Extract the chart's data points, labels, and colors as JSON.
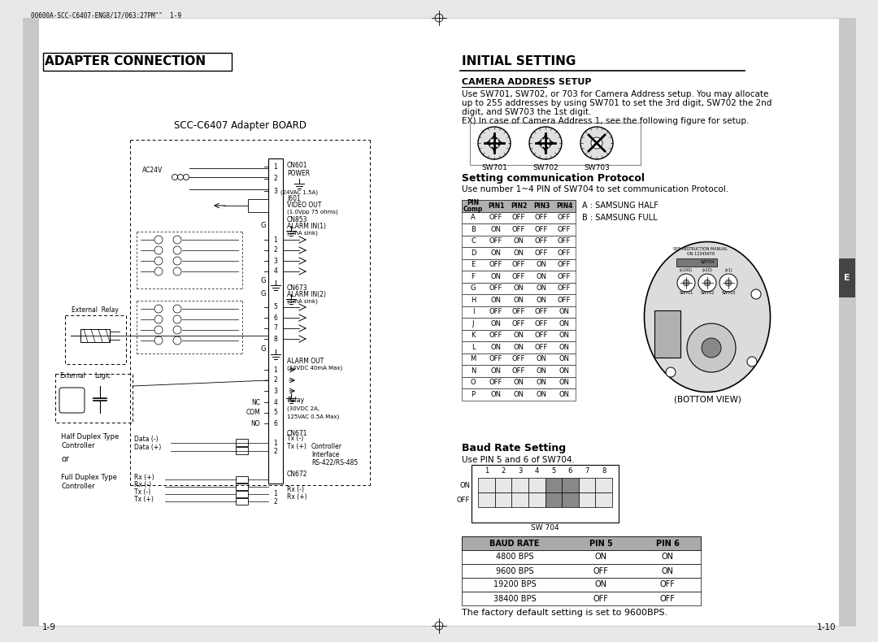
{
  "bg_color": "#e8e8e8",
  "page_bg": "#ffffff",
  "header_text": "00600A-SCC-C6407-ENG8/17/063:27PM˜˜  1-9",
  "left_title": "ADAPTER CONNECTION",
  "right_title": "INITIAL SETTING",
  "board_label": "SCC-C6407 Adapter BOARD",
  "camera_address_setup_title": "CAMERA ADDRESS SETUP",
  "camera_address_text1": "Use SW701, SW702, or 703 for Camera Address setup. You may allocate",
  "camera_address_text2": "up to 255 addresses by using SW701 to set the 3rd digit, SW702 the 2nd",
  "camera_address_text3": "digit, and SW703 the 1st digit.",
  "camera_address_text4": "EX) In case of Camera Address 1, see the following figure for setup.",
  "setting_protocol_title": "Setting communication Protocol",
  "setting_protocol_text": "Use number 1~4 PIN of SW704 to set communication Protocol.",
  "protocol_table_headers": [
    "PIN\nComp",
    "PIN1",
    "PIN2",
    "PIN3",
    "PIN4"
  ],
  "protocol_table_rows": [
    [
      "A",
      "OFF",
      "OFF",
      "OFF",
      "OFF"
    ],
    [
      "B",
      "ON",
      "OFF",
      "OFF",
      "OFF"
    ],
    [
      "C",
      "OFF",
      "ON",
      "OFF",
      "OFF"
    ],
    [
      "D",
      "ON",
      "ON",
      "OFF",
      "OFF"
    ],
    [
      "E",
      "OFF",
      "OFF",
      "ON",
      "OFF"
    ],
    [
      "F",
      "ON",
      "OFF",
      "ON",
      "OFF"
    ],
    [
      "G",
      "OFF",
      "ON",
      "ON",
      "OFF"
    ],
    [
      "H",
      "ON",
      "ON",
      "ON",
      "OFF"
    ],
    [
      "I",
      "OFF",
      "OFF",
      "OFF",
      "ON"
    ],
    [
      "J",
      "ON",
      "OFF",
      "OFF",
      "ON"
    ],
    [
      "K",
      "OFF",
      "ON",
      "OFF",
      "ON"
    ],
    [
      "L",
      "ON",
      "ON",
      "OFF",
      "ON"
    ],
    [
      "M",
      "OFF",
      "OFF",
      "ON",
      "ON"
    ],
    [
      "N",
      "ON",
      "OFF",
      "ON",
      "ON"
    ],
    [
      "O",
      "OFF",
      "ON",
      "ON",
      "ON"
    ],
    [
      "P",
      "ON",
      "ON",
      "ON",
      "ON"
    ]
  ],
  "note_a": "A : SAMSUNG HALF",
  "note_b": "B : SAMSUNG FULL",
  "baud_rate_title": "Baud Rate Setting",
  "baud_rate_text": "Use PIN 5 and 6 of SW704.",
  "sw704_label": "SW 704",
  "baud_table_headers": [
    "BAUD RATE",
    "PIN 5",
    "PIN 6"
  ],
  "baud_table_rows": [
    [
      "4800 BPS",
      "ON",
      "ON"
    ],
    [
      "9600 BPS",
      "OFF",
      "ON"
    ],
    [
      "19200 BPS",
      "ON",
      "OFF"
    ],
    [
      "38400 BPS",
      "OFF",
      "OFF"
    ]
  ],
  "factory_default_text": "The factory default setting is set to 9600BPS.",
  "bottom_view_text": "(BOTTOM VIEW)",
  "page_left": "1-9",
  "page_right": "1-10"
}
